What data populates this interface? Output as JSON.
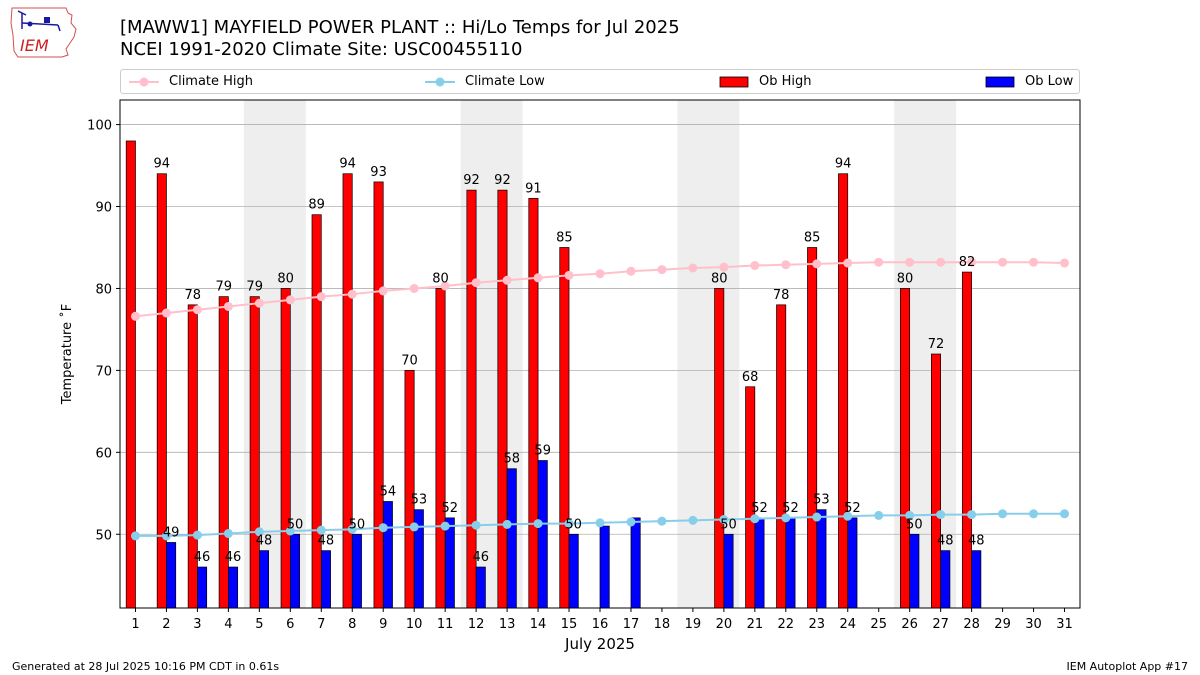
{
  "header": {
    "logo_text": "IEM",
    "title_line1": "[MAWW1] MAYFIELD POWER PLANT :: Hi/Lo Temps for Jul 2025",
    "title_line2": "NCEI 1991-2020 Climate Site: USC00455110"
  },
  "footer": {
    "generated": "Generated at 28 Jul 2025 10:16 PM CDT in 0.61s",
    "app": "IEM Autoplot App #17"
  },
  "colors": {
    "climate_high": "#ffc0cb",
    "climate_low": "#87ceeb",
    "ob_high": "#ff0000",
    "ob_low": "#0000ff",
    "weekend_shade": "#eeeeee",
    "grid": "#b0b0b0"
  },
  "chart_data": {
    "type": "bar",
    "xlabel": "July 2025",
    "ylabel": "Temperature ˚F",
    "ylim": [
      41,
      103
    ],
    "yticks": [
      50,
      60,
      70,
      80,
      90,
      100
    ],
    "grid": "horizontal",
    "legend_position": "top",
    "days": [
      1,
      2,
      3,
      4,
      5,
      6,
      7,
      8,
      9,
      10,
      11,
      12,
      13,
      14,
      15,
      16,
      17,
      18,
      19,
      20,
      21,
      22,
      23,
      24,
      25,
      26,
      27,
      28,
      29,
      30,
      31
    ],
    "shaded_days": [
      [
        5,
        6
      ],
      [
        12,
        13
      ],
      [
        19,
        20
      ],
      [
        26,
        27
      ]
    ],
    "series": [
      {
        "name": "Climate High",
        "kind": "line",
        "values": [
          76.6,
          77.0,
          77.4,
          77.8,
          78.2,
          78.6,
          79.0,
          79.3,
          79.7,
          80.0,
          80.3,
          80.7,
          81.0,
          81.3,
          81.6,
          81.8,
          82.1,
          82.3,
          82.5,
          82.6,
          82.8,
          82.9,
          83.0,
          83.1,
          83.2,
          83.2,
          83.2,
          83.2,
          83.2,
          83.2,
          83.1
        ]
      },
      {
        "name": "Climate Low",
        "kind": "line",
        "values": [
          49.8,
          49.8,
          49.9,
          50.1,
          50.3,
          50.4,
          50.5,
          50.6,
          50.8,
          50.9,
          51.0,
          51.1,
          51.2,
          51.3,
          51.3,
          51.4,
          51.5,
          51.6,
          51.7,
          51.8,
          51.9,
          52.0,
          52.1,
          52.2,
          52.3,
          52.3,
          52.4,
          52.4,
          52.5,
          52.5,
          52.5
        ]
      },
      {
        "name": "Ob High",
        "kind": "bar",
        "values": [
          98,
          94,
          78,
          79,
          79,
          80,
          89,
          94,
          93,
          70,
          80,
          92,
          92,
          91,
          85,
          null,
          null,
          null,
          null,
          80,
          68,
          78,
          85,
          94,
          null,
          80,
          72,
          82,
          null,
          null,
          null
        ],
        "labels": [
          null,
          "94",
          "78",
          "79",
          "79",
          "80",
          "89",
          "94",
          "93",
          "70",
          "80",
          "92",
          "92",
          "91",
          "85",
          null,
          null,
          null,
          null,
          "80",
          "68",
          "78",
          "85",
          "94",
          null,
          "80",
          "72",
          "82",
          null,
          null,
          null
        ]
      },
      {
        "name": "Ob Low",
        "kind": "bar",
        "values": [
          null,
          49,
          46,
          46,
          48,
          50,
          48,
          50,
          54,
          53,
          52,
          46,
          58,
          59,
          50,
          51,
          52,
          null,
          null,
          50,
          52,
          52,
          53,
          52,
          null,
          50,
          48,
          48,
          null,
          null,
          null
        ],
        "labels": [
          null,
          "49",
          "46",
          "46",
          "48",
          "50",
          "48",
          "50",
          "54",
          "53",
          "52",
          "46",
          "58",
          "59",
          "50",
          null,
          null,
          null,
          null,
          "50",
          "52",
          "52",
          "53",
          "52",
          null,
          "50",
          "48",
          "48",
          null,
          null,
          null
        ]
      }
    ]
  }
}
